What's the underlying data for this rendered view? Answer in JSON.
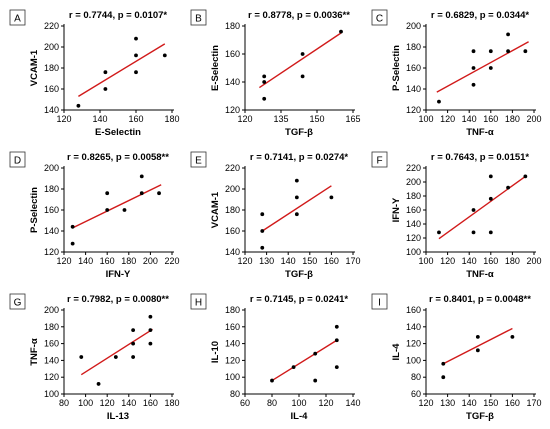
{
  "chart_data": [
    {
      "type": "scatter",
      "panel": "A",
      "title": "r = 0.7744, p = 0.0107*",
      "xlabel": "E-Selectin",
      "ylabel": "VCAM-1",
      "xlim": [
        120,
        180
      ],
      "ylim": [
        140,
        220
      ],
      "xticks": [
        120,
        140,
        160,
        180
      ],
      "yticks": [
        140,
        160,
        180,
        200,
        220
      ],
      "points": [
        [
          128,
          144
        ],
        [
          143,
          176
        ],
        [
          143,
          160
        ],
        [
          160,
          208
        ],
        [
          160,
          192
        ],
        [
          160,
          176
        ],
        [
          176,
          192
        ]
      ],
      "fit": [
        [
          128,
          153
        ],
        [
          176,
          203
        ]
      ]
    },
    {
      "type": "scatter",
      "panel": "B",
      "title": "r = 0.8778, p = 0.0036**",
      "xlabel": "TGF-β",
      "ylabel": "E-Selectin",
      "xlim": [
        120,
        165
      ],
      "ylim": [
        120,
        180
      ],
      "xticks": [
        120,
        135,
        150,
        165
      ],
      "yticks": [
        120,
        140,
        160,
        180
      ],
      "points": [
        [
          128,
          144
        ],
        [
          128,
          128
        ],
        [
          128,
          140
        ],
        [
          144,
          144
        ],
        [
          144,
          160
        ],
        [
          160,
          176
        ]
      ],
      "fit": [
        [
          126,
          136
        ],
        [
          160,
          175
        ]
      ]
    },
    {
      "type": "scatter",
      "panel": "C",
      "title": "r = 0.6829, p = 0.0344*",
      "xlabel": "TNF-α",
      "ylabel": "P-Selectin",
      "xlim": [
        100,
        200
      ],
      "ylim": [
        120,
        200
      ],
      "xticks": [
        100,
        120,
        140,
        160,
        180,
        200
      ],
      "yticks": [
        120,
        140,
        160,
        180,
        200
      ],
      "points": [
        [
          112,
          128
        ],
        [
          144,
          144
        ],
        [
          144,
          160
        ],
        [
          144,
          176
        ],
        [
          160,
          160
        ],
        [
          160,
          176
        ],
        [
          176,
          176
        ],
        [
          176,
          192
        ],
        [
          192,
          176
        ]
      ],
      "fit": [
        [
          110,
          137
        ],
        [
          195,
          185
        ]
      ]
    },
    {
      "type": "scatter",
      "panel": "D",
      "title": "r = 0.8265, p = 0.0058**",
      "xlabel": "IFN-Υ",
      "ylabel": "P-Selectin",
      "xlim": [
        120,
        220
      ],
      "ylim": [
        120,
        200
      ],
      "xticks": [
        120,
        140,
        160,
        180,
        200,
        220
      ],
      "yticks": [
        120,
        140,
        160,
        180,
        200
      ],
      "points": [
        [
          128,
          128
        ],
        [
          128,
          144
        ],
        [
          160,
          160
        ],
        [
          160,
          176
        ],
        [
          176,
          160
        ],
        [
          192,
          176
        ],
        [
          192,
          192
        ],
        [
          208,
          176
        ]
      ],
      "fit": [
        [
          128,
          143
        ],
        [
          210,
          184
        ]
      ]
    },
    {
      "type": "scatter",
      "panel": "E",
      "title": "r = 0.7141, p = 0.0274*",
      "xlabel": "TGF-β",
      "ylabel": "VCAM-1",
      "xlim": [
        120,
        170
      ],
      "ylim": [
        140,
        220
      ],
      "xticks": [
        120,
        130,
        140,
        150,
        160,
        170
      ],
      "yticks": [
        140,
        160,
        180,
        200,
        220
      ],
      "points": [
        [
          128,
          144
        ],
        [
          128,
          160
        ],
        [
          128,
          176
        ],
        [
          144,
          176
        ],
        [
          144,
          192
        ],
        [
          144,
          208
        ],
        [
          160,
          192
        ]
      ],
      "fit": [
        [
          128,
          160
        ],
        [
          160,
          203
        ]
      ]
    },
    {
      "type": "scatter",
      "panel": "F",
      "title": "r = 0.7643, p = 0.0151*",
      "xlabel": "TNF-α",
      "ylabel": "IFN-Υ",
      "xlim": [
        100,
        200
      ],
      "ylim": [
        100,
        220
      ],
      "xticks": [
        100,
        120,
        140,
        160,
        180,
        200
      ],
      "yticks": [
        100,
        120,
        140,
        160,
        180,
        200,
        220
      ],
      "points": [
        [
          112,
          128
        ],
        [
          144,
          128
        ],
        [
          144,
          160
        ],
        [
          160,
          128
        ],
        [
          160,
          176
        ],
        [
          160,
          208
        ],
        [
          176,
          192
        ],
        [
          192,
          208
        ]
      ],
      "fit": [
        [
          112,
          119
        ],
        [
          192,
          208
        ]
      ]
    },
    {
      "type": "scatter",
      "panel": "G",
      "title": "r = 0.7982, p = 0.0080**",
      "xlabel": "IL-13",
      "ylabel": "TNF-α",
      "xlim": [
        80,
        180
      ],
      "ylim": [
        100,
        200
      ],
      "xticks": [
        80,
        100,
        120,
        140,
        160,
        180
      ],
      "yticks": [
        100,
        120,
        140,
        160,
        180,
        200
      ],
      "points": [
        [
          96,
          144
        ],
        [
          112,
          112
        ],
        [
          128,
          144
        ],
        [
          144,
          144
        ],
        [
          144,
          160
        ],
        [
          144,
          176
        ],
        [
          160,
          160
        ],
        [
          160,
          176
        ],
        [
          160,
          192
        ]
      ],
      "fit": [
        [
          96,
          123
        ],
        [
          162,
          177
        ]
      ]
    },
    {
      "type": "scatter",
      "panel": "H",
      "title": "r = 0.7145, p = 0.0241*",
      "xlabel": "IL-4",
      "ylabel": "IL-10",
      "xlim": [
        60,
        140
      ],
      "ylim": [
        80,
        180
      ],
      "xticks": [
        60,
        80,
        100,
        120,
        140
      ],
      "yticks": [
        80,
        100,
        120,
        140,
        160,
        180
      ],
      "points": [
        [
          80,
          96
        ],
        [
          96,
          112
        ],
        [
          112,
          96
        ],
        [
          112,
          128
        ],
        [
          128,
          112
        ],
        [
          128,
          144
        ],
        [
          128,
          160
        ]
      ],
      "fit": [
        [
          80,
          96
        ],
        [
          128,
          144
        ]
      ]
    },
    {
      "type": "scatter",
      "panel": "I",
      "title": "r = 0.8401, p = 0.0048**",
      "xlabel": "TGF-β",
      "ylabel": "IL-4",
      "xlim": [
        120,
        170
      ],
      "ylim": [
        60,
        160
      ],
      "xticks": [
        120,
        130,
        140,
        150,
        160,
        170
      ],
      "yticks": [
        60,
        80,
        100,
        120,
        140,
        160
      ],
      "points": [
        [
          128,
          80
        ],
        [
          128,
          96
        ],
        [
          144,
          112
        ],
        [
          144,
          128
        ],
        [
          160,
          128
        ]
      ],
      "fit": [
        [
          128,
          96
        ],
        [
          160,
          138
        ]
      ]
    }
  ],
  "colors": {
    "points": "#000000",
    "fit": "#d11a1a",
    "axis": "#000000"
  }
}
